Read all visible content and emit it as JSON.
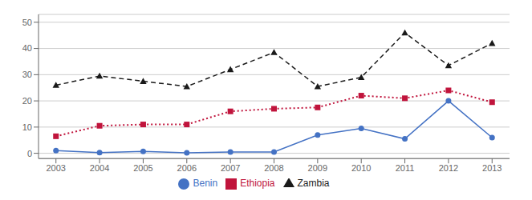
{
  "chart_data": {
    "type": "line",
    "x": [
      2003,
      2004,
      2005,
      2006,
      2007,
      2008,
      2009,
      2010,
      2011,
      2012,
      2013
    ],
    "xlim": [
      2002.6,
      2013.4
    ],
    "xticks": [
      2003,
      2004,
      2005,
      2006,
      2007,
      2008,
      2009,
      2010,
      2011,
      2012,
      2013
    ],
    "ylim": [
      -2,
      53
    ],
    "yticks": [
      0,
      10,
      20,
      30,
      40,
      50
    ],
    "grid": true,
    "legend": "bottom",
    "series": [
      {
        "name": "Benin",
        "color": "#4472C4",
        "marker": "circle",
        "line_style": "solid",
        "values": [
          1.0,
          0.3,
          0.7,
          0.2,
          0.5,
          0.5,
          7.0,
          9.5,
          5.5,
          20.0,
          6.0
        ]
      },
      {
        "name": "Ethiopia",
        "color": "#C0143C",
        "marker": "square",
        "line_style": "dotted",
        "values": [
          6.5,
          10.5,
          11.0,
          11.0,
          16.0,
          17.0,
          17.5,
          22.0,
          21.0,
          24.0,
          19.5
        ]
      },
      {
        "name": "Zambia",
        "color": "#1a1a1a",
        "marker": "triangle",
        "line_style": "dashed",
        "values": [
          26.0,
          29.5,
          27.5,
          25.5,
          32.0,
          38.5,
          25.5,
          29.0,
          46.0,
          33.5,
          42.0
        ]
      }
    ]
  }
}
